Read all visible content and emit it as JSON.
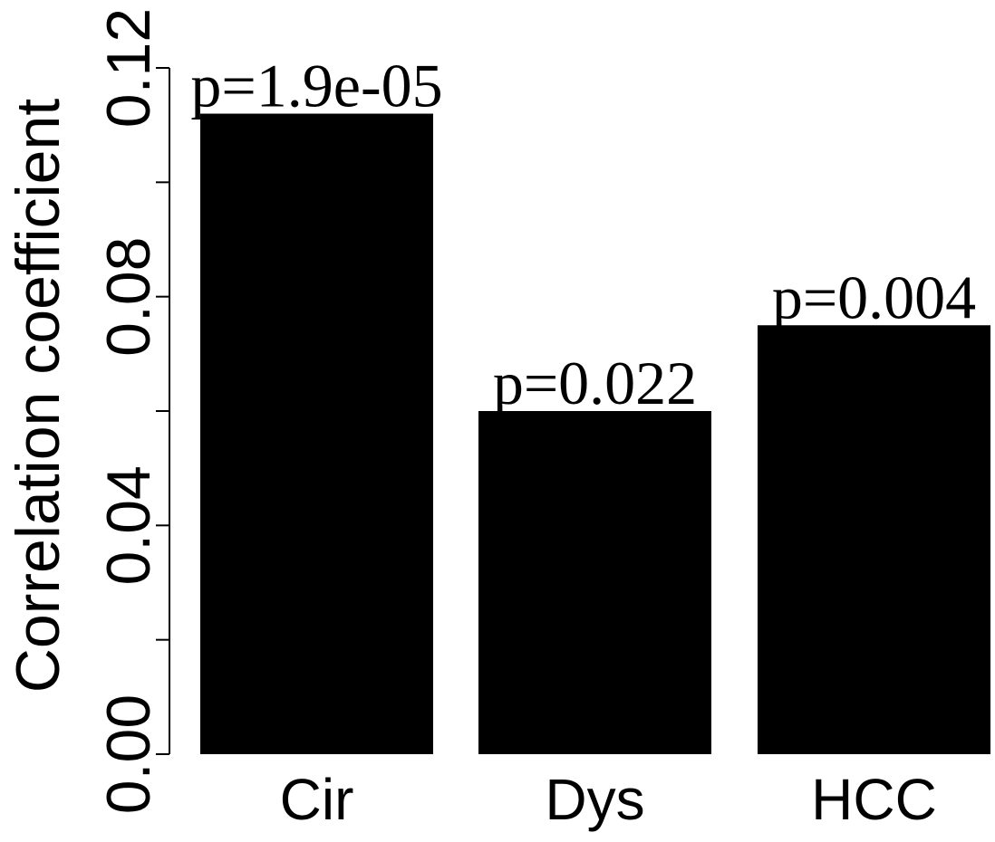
{
  "chart_data": {
    "type": "bar",
    "categories": [
      "Cir",
      "Dys",
      "HCC"
    ],
    "values": [
      0.112,
      0.06,
      0.075
    ],
    "bar_labels": [
      "p=1.9e-05",
      "p=0.022",
      "p=0.004"
    ],
    "ylabel": "Correlation coefficient",
    "xlabel": "",
    "ylim": [
      0,
      0.12
    ],
    "yticks": [
      0,
      0.02,
      0.04,
      0.06,
      0.08,
      0.1,
      0.12
    ],
    "ytick_labels": [
      "0.00",
      "",
      "0.04",
      "",
      "0.08",
      "",
      "0.12"
    ],
    "bar_color": "#000000",
    "grid": false
  }
}
